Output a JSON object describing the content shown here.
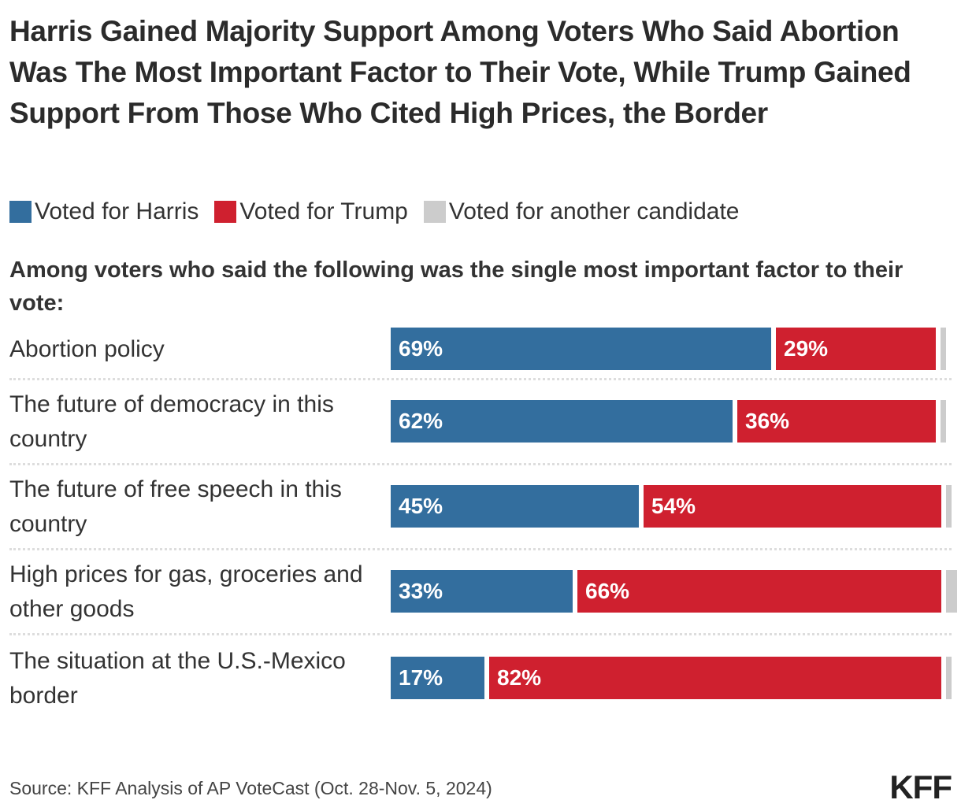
{
  "chart_data": {
    "type": "bar",
    "orientation": "horizontal-stacked",
    "title": "Harris Gained Majority Support Among Voters Who Said Abortion Was The Most Important Factor to Their Vote, While Trump Gained Support From Those Who Cited High Prices, the Border",
    "subtitle": "Among voters who said the following was the single most important factor to their vote:",
    "categories": [
      "Abortion policy",
      "The future of democracy in this country",
      "The future of free speech in this country",
      "High prices for gas, groceries and other goods",
      "The situation at the U.S.-Mexico border"
    ],
    "series": [
      {
        "name": "Voted for Harris",
        "color": "#336e9e",
        "values": [
          69,
          62,
          45,
          33,
          17
        ]
      },
      {
        "name": "Voted for Trump",
        "color": "#cf202f",
        "values": [
          29,
          36,
          54,
          66,
          82
        ]
      },
      {
        "name": "Voted for another candidate",
        "color": "#cccccc",
        "values": [
          1,
          1,
          1,
          2,
          1
        ]
      }
    ],
    "data_labels": [
      [
        "69%",
        "29%"
      ],
      [
        "62%",
        "36%"
      ],
      [
        "45%",
        "54%"
      ],
      [
        "33%",
        "66%"
      ],
      [
        "17%",
        "82%"
      ]
    ],
    "legend_position": "top",
    "grid": false
  },
  "source": "Source: KFF Analysis of AP VoteCast (Oct. 28-Nov. 5, 2024)",
  "logo": "KFF"
}
